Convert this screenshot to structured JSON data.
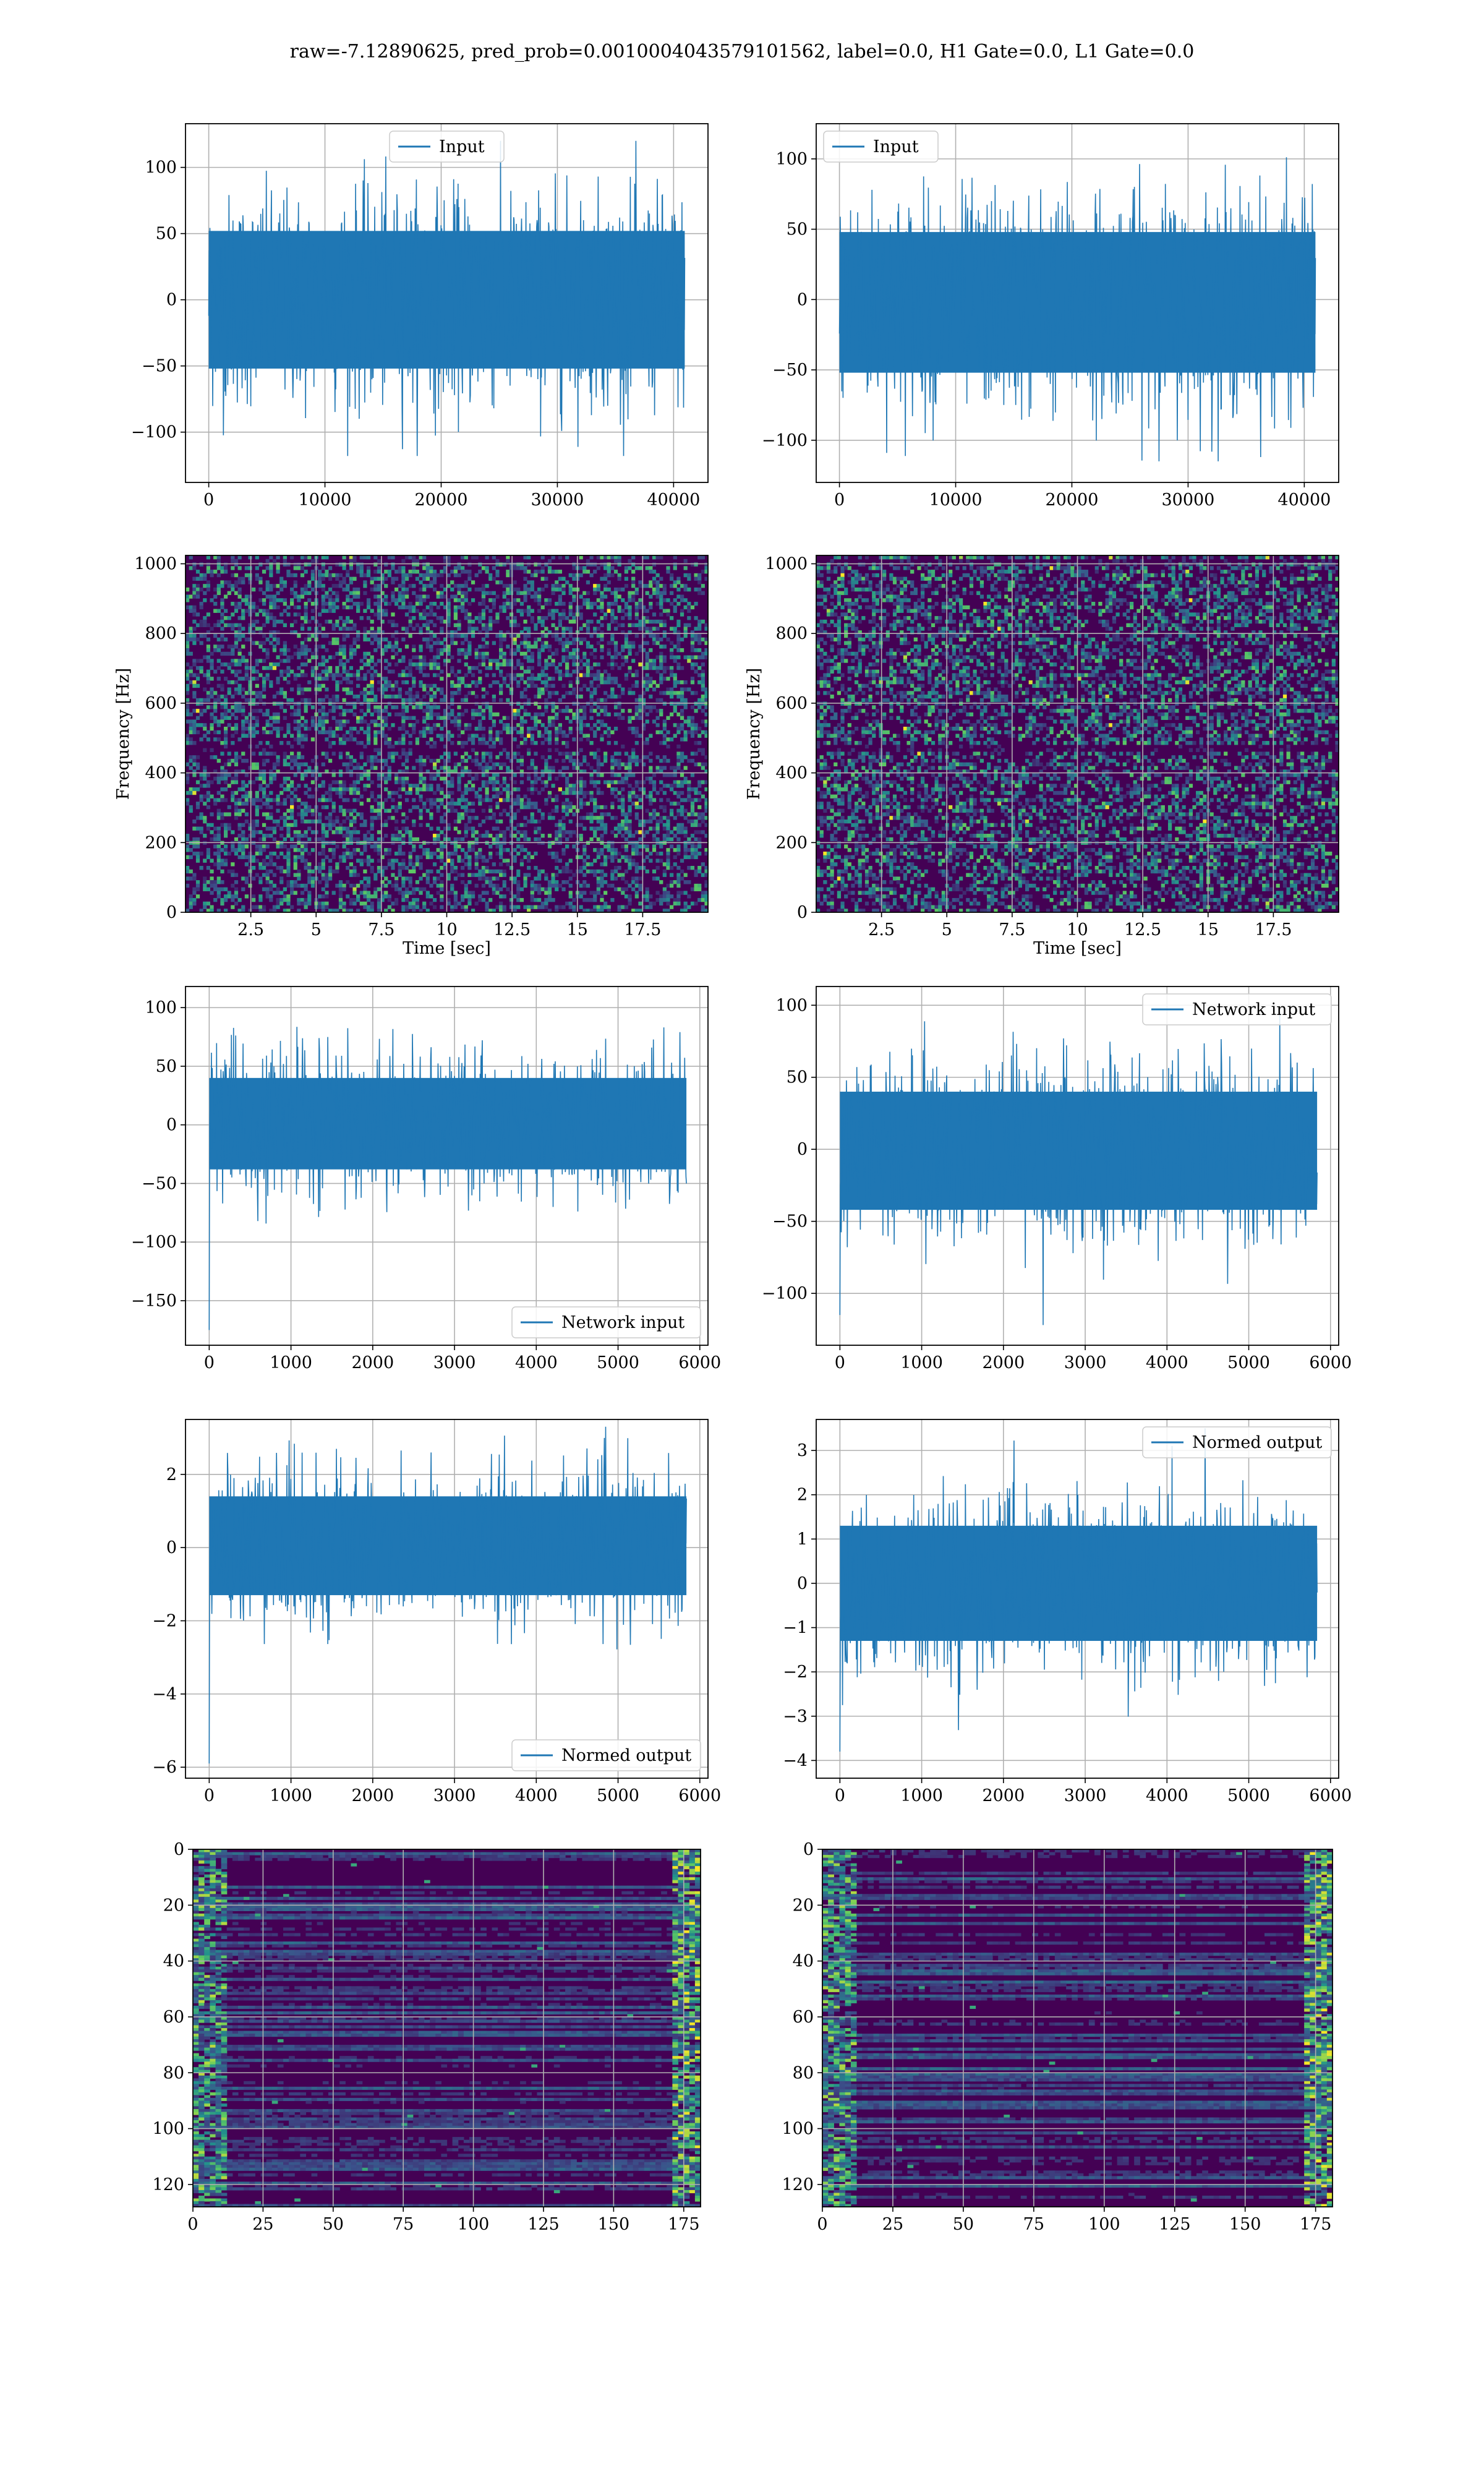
{
  "suptitle": "raw=-7.12890625, pred_prob=0.0010004043579101562, label=0.0, H1 Gate=0.0, L1 Gate=0.0",
  "colors": {
    "series": "#1f77b4",
    "grid": "#b0b0b0",
    "viridis_low": "#440154",
    "viridis_mid": "#21918c",
    "viridis_high": "#fde725"
  },
  "chart_data": [
    {
      "type": "line",
      "row": 0,
      "col": 0,
      "legend": "Input",
      "legend_loc": "upper center",
      "xlim": [
        -2000,
        42960
      ],
      "ylim": [
        -138,
        133
      ],
      "xticks": [
        0,
        10000,
        20000,
        30000,
        40000
      ],
      "yticks": [
        -100,
        -50,
        0,
        50,
        100
      ],
      "x_range": [
        0,
        40959
      ],
      "band": [
        -52,
        52
      ],
      "peak": [
        -118,
        120
      ],
      "samples": 1200,
      "xlabel": "",
      "ylabel": "",
      "grid": true
    },
    {
      "type": "line",
      "row": 0,
      "col": 1,
      "legend": "Input",
      "legend_loc": "upper left",
      "xlim": [
        -2000,
        42960
      ],
      "ylim": [
        -130,
        125
      ],
      "xticks": [
        0,
        10000,
        20000,
        30000,
        40000
      ],
      "yticks": [
        -100,
        -50,
        0,
        50,
        100
      ],
      "x_range": [
        0,
        40959
      ],
      "band": [
        -52,
        48
      ],
      "peak": [
        -115,
        102
      ],
      "samples": 1200,
      "xlabel": "",
      "ylabel": "",
      "grid": true
    },
    {
      "type": "heatmap",
      "row": 1,
      "col": 0,
      "kind": "spectrogram",
      "xlim": [
        0,
        20
      ],
      "ylim": [
        0,
        1024
      ],
      "xticks": [
        2.5,
        5.0,
        7.5,
        10.0,
        12.5,
        15.0,
        17.5
      ],
      "yticks": [
        0,
        200,
        400,
        600,
        800,
        1000
      ],
      "xlabel": "Time [sec]",
      "ylabel": "Frequency [Hz]",
      "grid": true
    },
    {
      "type": "heatmap",
      "row": 1,
      "col": 1,
      "kind": "spectrogram",
      "xlim": [
        0,
        20
      ],
      "ylim": [
        0,
        1024
      ],
      "xticks": [
        2.5,
        5.0,
        7.5,
        10.0,
        12.5,
        15.0,
        17.5
      ],
      "yticks": [
        0,
        200,
        400,
        600,
        800,
        1000
      ],
      "xlabel": "Time [sec]",
      "ylabel": "Frequency [Hz]",
      "grid": true
    },
    {
      "type": "line",
      "row": 2,
      "col": 0,
      "legend": "Network input",
      "legend_loc": "lower right",
      "xlim": [
        -290,
        6100
      ],
      "ylim": [
        -188,
        118
      ],
      "xticks": [
        0,
        1000,
        2000,
        3000,
        4000,
        5000,
        6000
      ],
      "yticks": [
        -150,
        -100,
        -50,
        0,
        50,
        100
      ],
      "x_range": [
        0,
        5836
      ],
      "band": [
        -38,
        40
      ],
      "peak": [
        -104,
        103
      ],
      "first_value": -175,
      "samples": 1100,
      "xlabel": "",
      "ylabel": "",
      "grid": true
    },
    {
      "type": "line",
      "row": 2,
      "col": 1,
      "legend": "Network input",
      "legend_loc": "upper right",
      "xlim": [
        -290,
        6100
      ],
      "ylim": [
        -136,
        113
      ],
      "xticks": [
        0,
        1000,
        2000,
        3000,
        4000,
        5000,
        6000
      ],
      "yticks": [
        -100,
        -50,
        0,
        50,
        100
      ],
      "x_range": [
        0,
        5836
      ],
      "band": [
        -42,
        40
      ],
      "peak": [
        -122,
        98
      ],
      "first_value": -115,
      "samples": 1100,
      "xlabel": "",
      "ylabel": "",
      "grid": true
    },
    {
      "type": "line",
      "row": 3,
      "col": 0,
      "legend": "Normed output",
      "legend_loc": "lower right",
      "xlim": [
        -290,
        6100
      ],
      "ylim": [
        -6.3,
        3.5
      ],
      "xticks": [
        0,
        1000,
        2000,
        3000,
        4000,
        5000,
        6000
      ],
      "yticks": [
        -6,
        -4,
        -2,
        0,
        2
      ],
      "x_range": [
        0,
        5836
      ],
      "band": [
        -1.3,
        1.4
      ],
      "peak": [
        -3.3,
        3.3
      ],
      "first_value": -5.9,
      "samples": 1100,
      "xlabel": "",
      "ylabel": "",
      "grid": true
    },
    {
      "type": "line",
      "row": 3,
      "col": 1,
      "legend": "Normed output",
      "legend_loc": "upper right",
      "xlim": [
        -290,
        6100
      ],
      "ylim": [
        -4.4,
        3.7
      ],
      "xticks": [
        0,
        1000,
        2000,
        3000,
        4000,
        5000,
        6000
      ],
      "yticks": [
        -4,
        -3,
        -2,
        -1,
        0,
        1,
        2,
        3
      ],
      "x_range": [
        0,
        5836
      ],
      "band": [
        -1.3,
        1.3
      ],
      "peak": [
        -3.9,
        3.5
      ],
      "first_value": -3.8,
      "samples": 1100,
      "xlabel": "",
      "ylabel": "",
      "grid": true
    },
    {
      "type": "heatmap",
      "row": 4,
      "col": 0,
      "kind": "activations",
      "xlim": [
        0,
        181
      ],
      "ylim": [
        128,
        0
      ],
      "xticks": [
        0,
        25,
        50,
        75,
        100,
        125,
        150,
        175
      ],
      "yticks": [
        0,
        20,
        40,
        60,
        80,
        100,
        120
      ],
      "xlabel": "",
      "ylabel": "",
      "grid": true
    },
    {
      "type": "heatmap",
      "row": 4,
      "col": 1,
      "kind": "activations",
      "xlim": [
        0,
        181
      ],
      "ylim": [
        128,
        0
      ],
      "xticks": [
        0,
        25,
        50,
        75,
        100,
        125,
        150,
        175
      ],
      "yticks": [
        0,
        20,
        40,
        60,
        80,
        100,
        120
      ],
      "xlabel": "",
      "ylabel": "",
      "grid": true
    }
  ]
}
